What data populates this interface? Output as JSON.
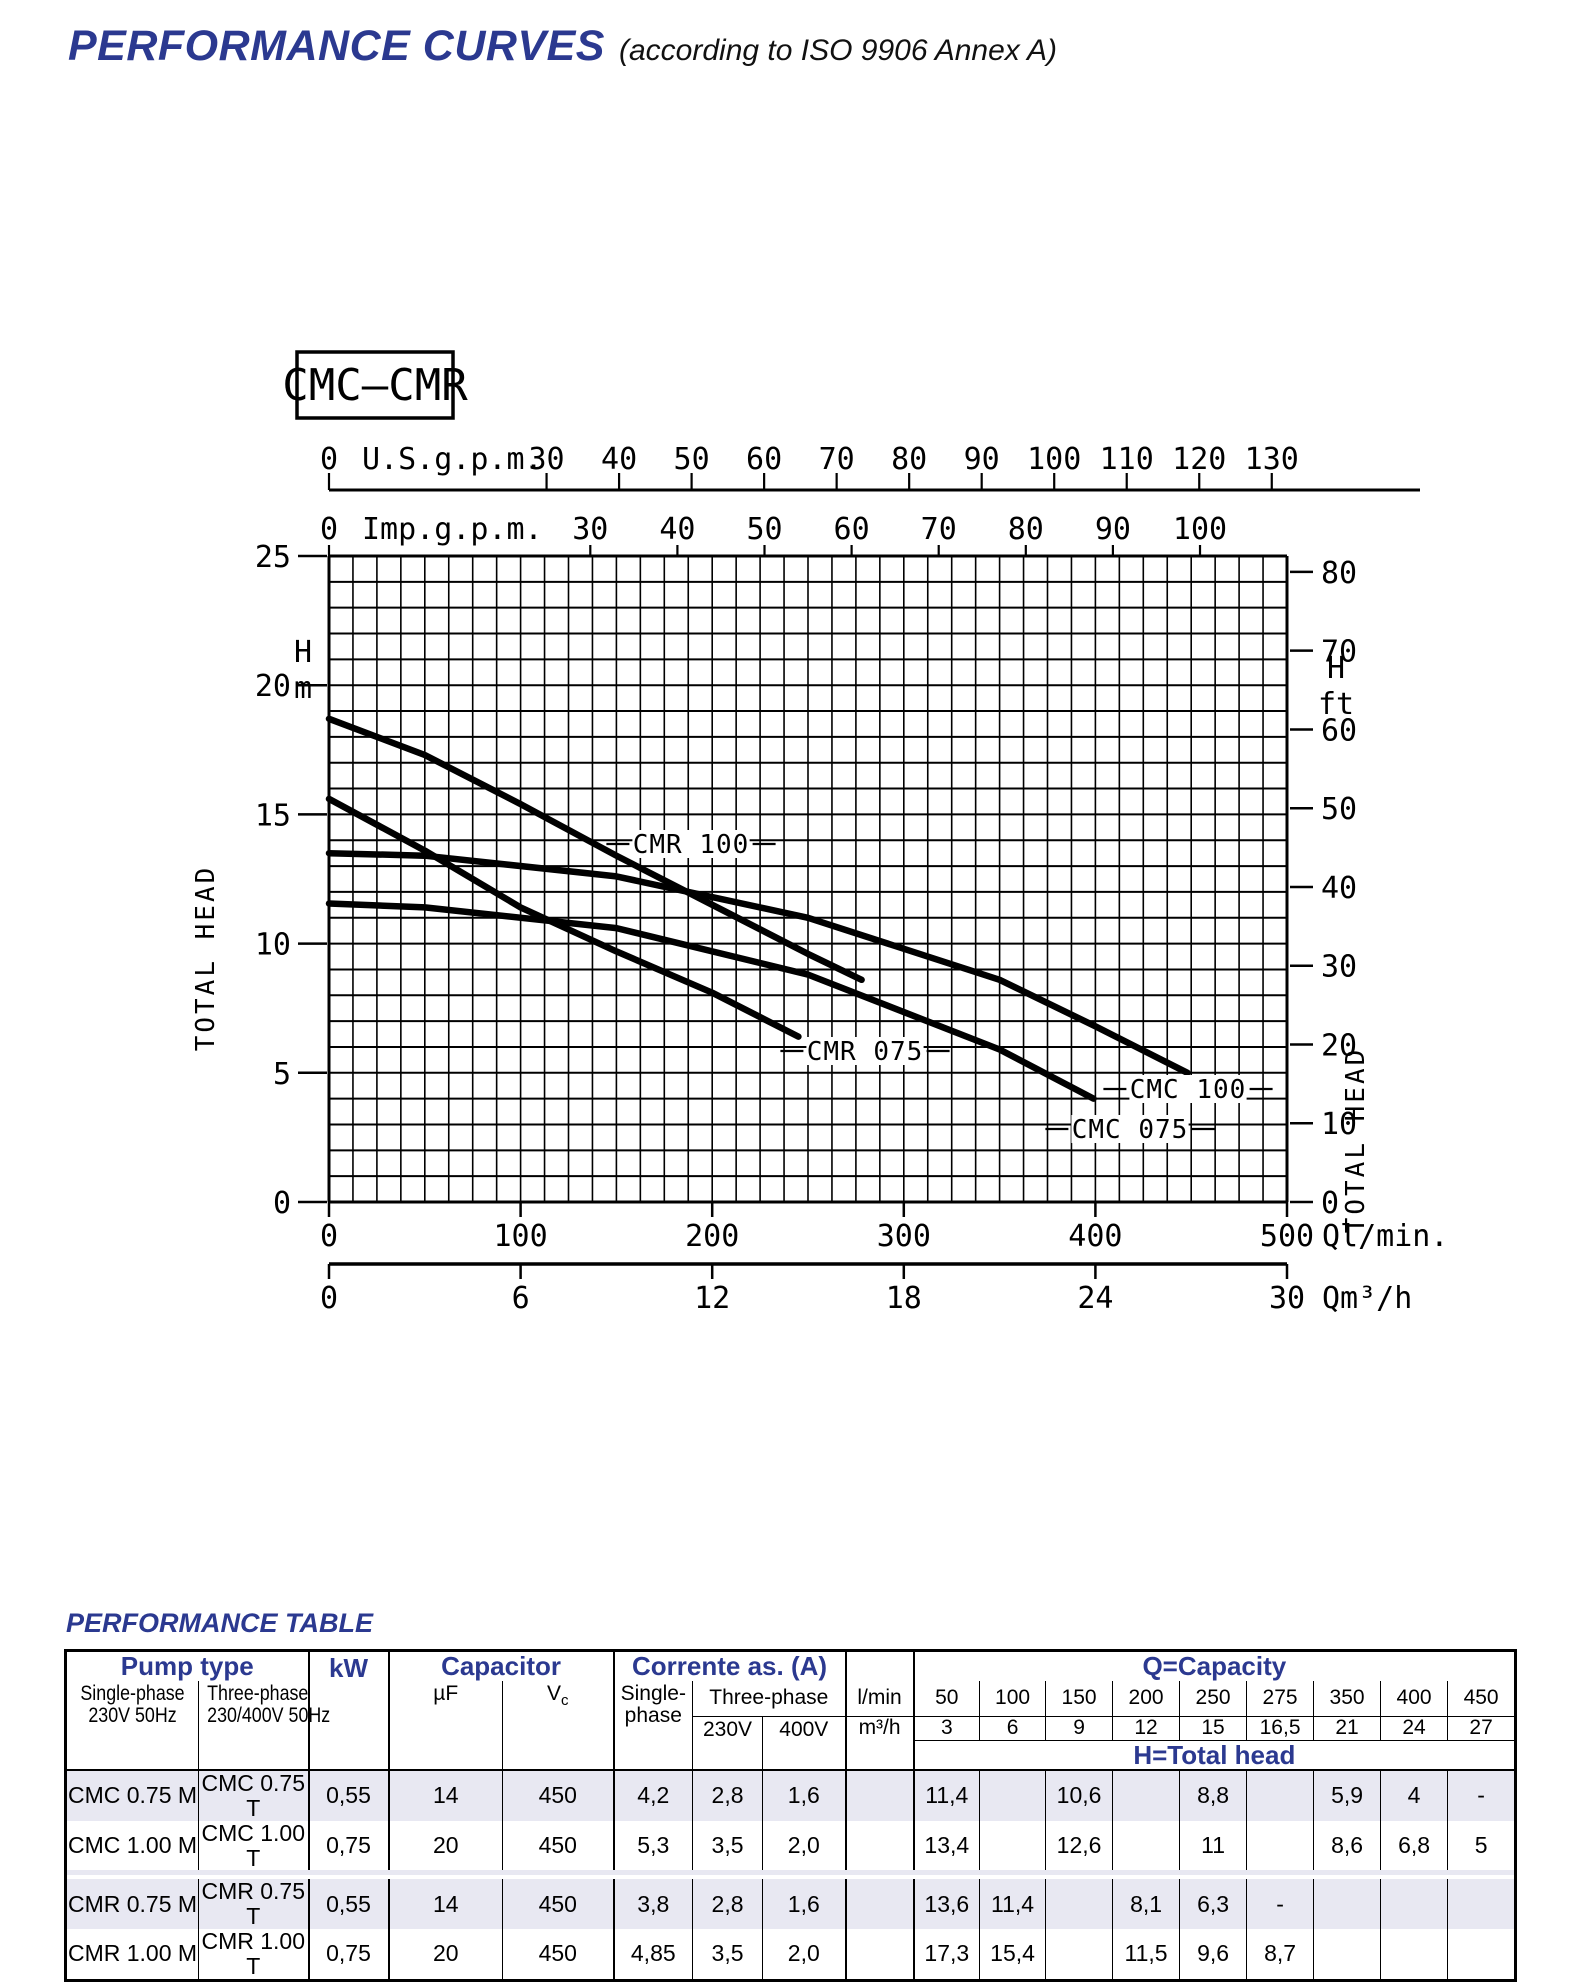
{
  "page": {
    "title": "PERFORMANCE CURVES",
    "subtitle": "(according to ISO 9906 Annex A)"
  },
  "chart_data": {
    "type": "line",
    "title_box": "CMC–CMR",
    "xlim_lmin": [
      0,
      500
    ],
    "ylim_m": [
      0,
      25
    ],
    "grid": {
      "x_step_lmin": 12.5,
      "y_step_m": 1,
      "grid_on": true
    },
    "axes": {
      "us_gpm": {
        "label": "U.S.g.p.m.",
        "values": [
          0,
          30,
          40,
          50,
          60,
          70,
          80,
          90,
          100,
          110,
          120,
          130
        ],
        "lpm_per_unit": 3.785
      },
      "imp_gpm": {
        "label": "Imp.g.p.m.",
        "values": [
          0,
          30,
          40,
          50,
          60,
          70,
          80,
          90,
          100
        ],
        "lpm_per_unit": 4.546
      },
      "left": {
        "unit_lines": [
          "H",
          "m"
        ],
        "title": "TOTAL HEAD",
        "values": [
          25,
          20,
          15,
          10,
          5,
          0
        ]
      },
      "right": {
        "unit_lines": [
          "H",
          "ft"
        ],
        "title": "TOTAL HEAD",
        "values": [
          80,
          70,
          60,
          50,
          40,
          30,
          20,
          10,
          0
        ],
        "m_per_ft": 0.3048
      },
      "bottom_lmin": {
        "label": "Ql/min.",
        "values": [
          0,
          100,
          200,
          300,
          400,
          500
        ]
      },
      "bottom_m3h": {
        "label": "Qm³/h",
        "values": [
          0,
          6,
          12,
          18,
          24,
          30
        ],
        "lmin_per_unit": 16.6667
      }
    },
    "series": [
      {
        "name": "CMR 100",
        "points": [
          [
            0,
            18.7
          ],
          [
            50,
            17.3
          ],
          [
            100,
            15.4
          ],
          [
            150,
            13.4
          ],
          [
            200,
            11.5
          ],
          [
            250,
            9.6
          ],
          [
            278,
            8.6
          ]
        ],
        "label": {
          "cx": 691,
          "cy": 844
        }
      },
      {
        "name": "CMR 075",
        "points": [
          [
            0,
            15.6
          ],
          [
            50,
            13.6
          ],
          [
            100,
            11.4
          ],
          [
            150,
            9.7
          ],
          [
            200,
            8.1
          ],
          [
            245,
            6.4
          ]
        ],
        "label": {
          "cx": 865,
          "cy": 1051
        }
      },
      {
        "name": "CMC 100",
        "points": [
          [
            0,
            13.5
          ],
          [
            50,
            13.4
          ],
          [
            150,
            12.6
          ],
          [
            250,
            11.0
          ],
          [
            350,
            8.6
          ],
          [
            400,
            6.8
          ],
          [
            448,
            5.0
          ]
        ],
        "label": {
          "cx": 1188,
          "cy": 1089
        }
      },
      {
        "name": "CMC 075",
        "points": [
          [
            0,
            11.55
          ],
          [
            50,
            11.4
          ],
          [
            150,
            10.6
          ],
          [
            250,
            8.8
          ],
          [
            350,
            5.9
          ],
          [
            399,
            4.0
          ]
        ],
        "label": {
          "cx": 1130,
          "cy": 1129
        }
      }
    ]
  },
  "table": {
    "title": "PERFORMANCE TABLE",
    "header": {
      "pump_type": "Pump type",
      "kw": "kW",
      "capacitor": "Capacitor",
      "corrente": "Corrente as. (A)",
      "q_capacity": "Q=Capacity",
      "h_total": "H=Total head",
      "single_phase": "Single-phase",
      "single_phase2": "230V 50Hz",
      "three_phase": "Three-phase",
      "three_phase2": "230/400V 50Hz",
      "uf": "µF",
      "vc_main": "V",
      "vc_sub": "c",
      "corr_single": "Single-",
      "corr_single2": "phase",
      "corr_three": "Three-phase",
      "v230": "230V",
      "v400": "400V",
      "lmin": "l/min",
      "m3h": "m³/h",
      "q_lmin": [
        "50",
        "100",
        "150",
        "200",
        "250",
        "275",
        "350",
        "400",
        "450"
      ],
      "q_m3h": [
        "3",
        "6",
        "9",
        "12",
        "15",
        "16,5",
        "21",
        "24",
        "27"
      ]
    },
    "rows": [
      {
        "m": "CMC 0.75 M",
        "t": "CMC 0.75 T",
        "kw": "0,55",
        "uf": "14",
        "vc": "450",
        "a_single": "4,2",
        "a_230": "2,8",
        "a_400": "1,6",
        "h": [
          "11,4",
          "",
          "10,6",
          "",
          "8,8",
          "",
          "5,9",
          "4",
          "-"
        ]
      },
      {
        "m": "CMC 1.00 M",
        "t": "CMC 1.00 T",
        "kw": "0,75",
        "uf": "20",
        "vc": "450",
        "a_single": "5,3",
        "a_230": "3,5",
        "a_400": "2,0",
        "h": [
          "13,4",
          "",
          "12,6",
          "",
          "11",
          "",
          "8,6",
          "6,8",
          "5"
        ]
      },
      {
        "m": "CMR 0.75 M",
        "t": "CMR 0.75 T",
        "kw": "0,55",
        "uf": "14",
        "vc": "450",
        "a_single": "3,8",
        "a_230": "2,8",
        "a_400": "1,6",
        "h": [
          "13,6",
          "11,4",
          "",
          "8,1",
          "6,3",
          "-",
          "",
          "",
          ""
        ]
      },
      {
        "m": "CMR 1.00 M",
        "t": "CMR 1.00 T",
        "kw": "0,75",
        "uf": "20",
        "vc": "450",
        "a_single": "4,85",
        "a_230": "3,5",
        "a_400": "2,0",
        "h": [
          "17,3",
          "15,4",
          "",
          "11,5",
          "9,6",
          "8,7",
          "",
          "",
          ""
        ]
      }
    ]
  }
}
